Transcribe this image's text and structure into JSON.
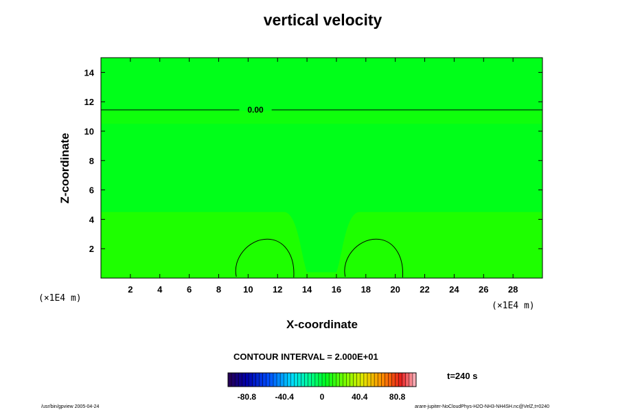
{
  "chart_data": {
    "type": "heatmap",
    "title": "vertical velocity",
    "xlabel": "X-coordinate",
    "ylabel": "Z-coordinate",
    "x_unit": "(×1E4 m)",
    "y_unit": "(×1E4 m)",
    "xlim": [
      0,
      30
    ],
    "ylim": [
      0,
      15
    ],
    "x_ticks": [
      "2",
      "4",
      "6",
      "8",
      "10",
      "12",
      "14",
      "16",
      "18",
      "20",
      "22",
      "24",
      "26",
      "28"
    ],
    "y_ticks": [
      "2",
      "4",
      "6",
      "8",
      "10",
      "12",
      "14"
    ],
    "contour_interval": "CONTOUR INTERVAL = 2.000E+01",
    "contour_label": "0.00",
    "contour_level": 0,
    "time_label": "t=240 s",
    "colorbar": {
      "min": -101,
      "max": 101,
      "ticks": [
        "-80.8",
        "-40.4",
        "0",
        "40.4",
        "80.8"
      ]
    },
    "colors": {
      "field": "#00ff19",
      "band": "#1eff00",
      "contour": "#000000"
    }
  },
  "footer": {
    "left": "/usr/bin/gpview 2005-04-24",
    "right": "arare-jupiter-NoCloudPhys-H2O-NH3-NH4SH.nc@VelZ,t=0240"
  }
}
